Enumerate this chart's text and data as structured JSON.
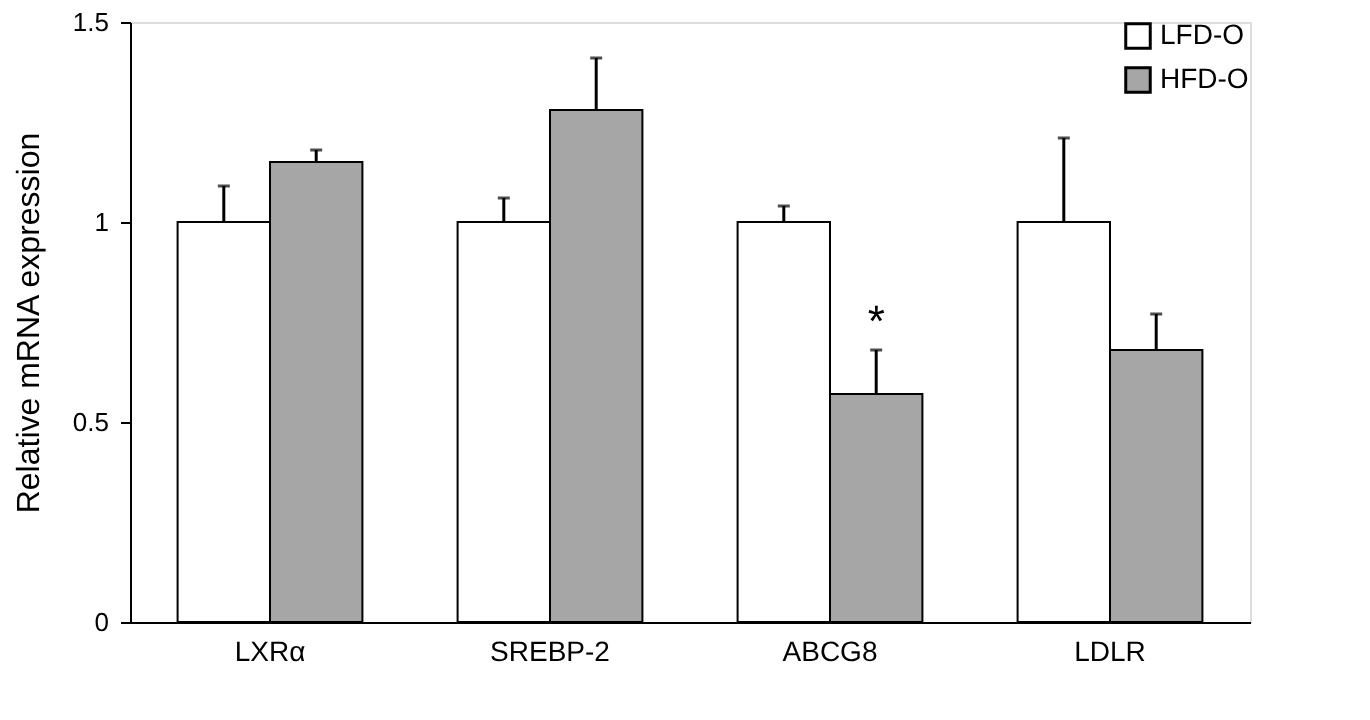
{
  "chart_data": {
    "type": "bar",
    "ylabel": "Relative mRNA expression",
    "categories": [
      "LXRα",
      "SREBP-2",
      "ABCG8",
      "LDLR"
    ],
    "series": [
      {
        "name": "LFD-O",
        "color": "#ffffff",
        "values": [
          1.0,
          1.0,
          1.0,
          1.0
        ],
        "errors": [
          0.09,
          0.06,
          0.04,
          0.21
        ]
      },
      {
        "name": "HFD-O",
        "color": "#a6a6a6",
        "values": [
          1.15,
          1.28,
          0.57,
          0.68
        ],
        "errors": [
          0.03,
          0.13,
          0.11,
          0.09
        ]
      }
    ],
    "ylim": [
      0,
      1.5
    ],
    "yticks": [
      0,
      0.5,
      1,
      1.5
    ],
    "grid": false,
    "legend": "top right",
    "annotations": [
      {
        "text": "*",
        "x": "ABCG8",
        "y": 0.75
      }
    ]
  }
}
